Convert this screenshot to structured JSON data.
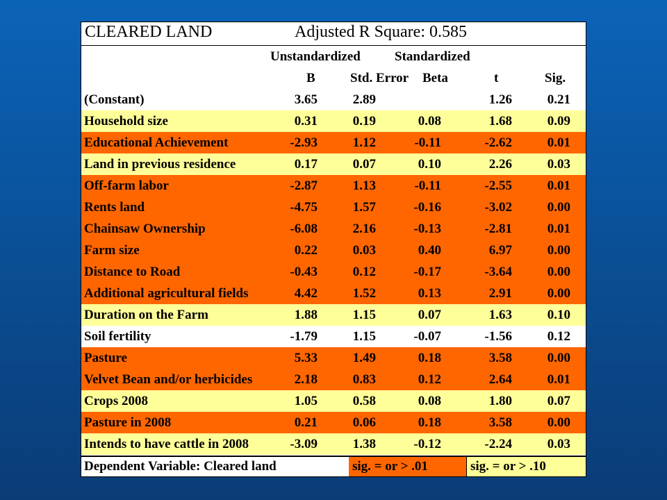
{
  "title": "CLEARED LAND",
  "subtitle": "Adjusted R Square: 0.585",
  "header": {
    "unstandardized": "Unstandardized",
    "standardized": "Standardized",
    "col_b": "B",
    "col_se": "Std. Error",
    "col_beta": "Beta",
    "col_t": "t",
    "col_sig": "Sig."
  },
  "colors": {
    "sig_01": "#ff6600",
    "sig_10": "#ffff99",
    "none": "#ffffff"
  },
  "rows": [
    {
      "label": "(Constant)",
      "b": "3.65",
      "se": "2.89",
      "beta": "",
      "t": "1.26",
      "sig": "0.21",
      "level": "none"
    },
    {
      "label": "Household size",
      "b": "0.31",
      "se": "0.19",
      "beta": "0.08",
      "t": "1.68",
      "sig": "0.09",
      "level": "sig_10"
    },
    {
      "label": "Educational Achievement",
      "b": "-2.93",
      "se": "1.12",
      "beta": "-0.11",
      "t": "-2.62",
      "sig": "0.01",
      "level": "sig_01"
    },
    {
      "label": "Land in previous residence",
      "b": "0.17",
      "se": "0.07",
      "beta": "0.10",
      "t": "2.26",
      "sig": "0.03",
      "level": "sig_10"
    },
    {
      "label": "Off-farm labor",
      "b": "-2.87",
      "se": "1.13",
      "beta": "-0.11",
      "t": "-2.55",
      "sig": "0.01",
      "level": "sig_01"
    },
    {
      "label": "Rents land",
      "b": "-4.75",
      "se": "1.57",
      "beta": "-0.16",
      "t": "-3.02",
      "sig": "0.00",
      "level": "sig_01"
    },
    {
      "label": "Chainsaw Ownership",
      "b": "-6.08",
      "se": "2.16",
      "beta": "-0.13",
      "t": "-2.81",
      "sig": "0.01",
      "level": "sig_01"
    },
    {
      "label": "Farm size",
      "b": "0.22",
      "se": "0.03",
      "beta": "0.40",
      "t": "6.97",
      "sig": "0.00",
      "level": "sig_01"
    },
    {
      "label": "Distance to Road",
      "b": "-0.43",
      "se": "0.12",
      "beta": "-0.17",
      "t": "-3.64",
      "sig": "0.00",
      "level": "sig_01"
    },
    {
      "label": "Additional agricultural fields",
      "b": "4.42",
      "se": "1.52",
      "beta": "0.13",
      "t": "2.91",
      "sig": "0.00",
      "level": "sig_01"
    },
    {
      "label": "Duration on the Farm",
      "b": "1.88",
      "se": "1.15",
      "beta": "0.07",
      "t": "1.63",
      "sig": "0.10",
      "level": "sig_10"
    },
    {
      "label": "Soil fertility",
      "b": "-1.79",
      "se": "1.15",
      "beta": "-0.07",
      "t": "-1.56",
      "sig": "0.12",
      "level": "none"
    },
    {
      "label": "Pasture",
      "b": "5.33",
      "se": "1.49",
      "beta": "0.18",
      "t": "3.58",
      "sig": "0.00",
      "level": "sig_01"
    },
    {
      "label": "Velvet Bean and/or herbicides",
      "b": "2.18",
      "se": "0.83",
      "beta": "0.12",
      "t": "2.64",
      "sig": "0.01",
      "level": "sig_01"
    },
    {
      "label": "Crops 2008",
      "b": "1.05",
      "se": "0.58",
      "beta": "0.08",
      "t": "1.80",
      "sig": "0.07",
      "level": "sig_10"
    },
    {
      "label": "Pasture in 2008",
      "b": "0.21",
      "se": "0.06",
      "beta": "0.18",
      "t": "3.58",
      "sig": "0.00",
      "level": "sig_01"
    },
    {
      "label": "Intends to have cattle in 2008",
      "b": "-3.09",
      "se": "1.38",
      "beta": "-0.12",
      "t": "-2.24",
      "sig": "0.03",
      "level": "sig_10"
    }
  ],
  "footer": {
    "dependent": "Dependent Variable: Cleared land",
    "legend_01": "sig. = or > .01",
    "legend_10": "sig. = or > .10"
  }
}
